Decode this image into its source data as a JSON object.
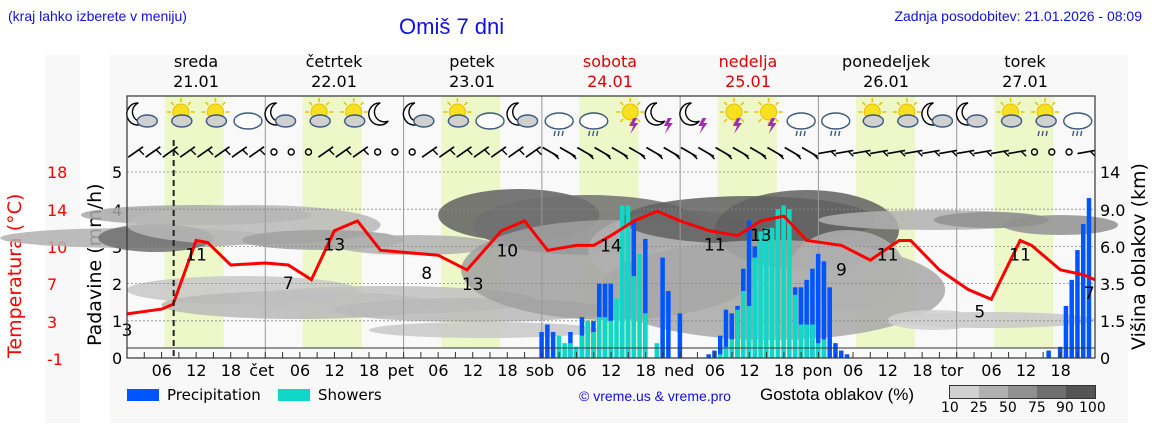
{
  "header": {
    "left_note": "(kraj lahko izberete v meniju)",
    "title": "Omiš 7 dni",
    "updated": "Zadnja posodobitev: 21.01.2026 - 08:09"
  },
  "days": [
    {
      "name": "sreda",
      "date": "21.01",
      "weekend": false
    },
    {
      "name": "četrtek",
      "date": "22.01",
      "weekend": false
    },
    {
      "name": "petek",
      "date": "23.01",
      "weekend": false
    },
    {
      "name": "sobota",
      "date": "24.01",
      "weekend": true
    },
    {
      "name": "nedelja",
      "date": "25.01",
      "weekend": true
    },
    {
      "name": "ponedeljek",
      "date": "26.01",
      "weekend": false
    },
    {
      "name": "torek",
      "date": "27.01",
      "weekend": false
    }
  ],
  "axes": {
    "temperature_label": "Temperatura (°C)",
    "temperature_ticks": [
      "18",
      "14",
      "10",
      "7",
      "3",
      "-1"
    ],
    "precip_label": "Padavine (mm/h)",
    "precip_ticks": [
      "5",
      "4",
      "3",
      "2",
      "1",
      "0"
    ],
    "cloud_height_label": "Višina oblakov (km)",
    "cloud_height_ticks": [
      "14",
      "9.0",
      "6.0",
      "3.5",
      "1.5",
      "0"
    ],
    "hour_labels": [
      "06",
      "12",
      "18",
      "čet",
      "06",
      "12",
      "18",
      "pet",
      "06",
      "12",
      "18",
      "sob",
      "06",
      "12",
      "18",
      "ned",
      "06",
      "12",
      "18",
      "pon",
      "06",
      "12",
      "18",
      "tor",
      "06",
      "12",
      "18"
    ]
  },
  "legend": {
    "precipitation": "Precipitation",
    "showers": "Showers",
    "precip_color": "#0055ff",
    "showers_color": "#10d8c8",
    "copyright": "© vreme.us & vreme.pro",
    "cloud_density_label": "Gostota oblakov (%)",
    "cloud_density_scale": [
      "10",
      "25",
      "50",
      "75",
      "90",
      "100"
    ],
    "cloud_density_colors": [
      "#d0d0d0",
      "#b0b0b0",
      "#909090",
      "#707070",
      "#545454"
    ]
  },
  "chart_data": {
    "type": "line",
    "title": "Omiš 7 dni",
    "x_range_hours": [
      0,
      168
    ],
    "x_start": "21.01 00:00",
    "series": [
      {
        "name": "Temperatura (°C)",
        "color": "#ff0000",
        "points_hours_temp": [
          [
            0,
            3.5
          ],
          [
            6,
            4.0
          ],
          [
            8,
            4.5
          ],
          [
            12,
            11
          ],
          [
            14,
            10.8
          ],
          [
            18,
            8.5
          ],
          [
            24,
            8.7
          ],
          [
            28,
            8.5
          ],
          [
            32,
            7
          ],
          [
            36,
            12
          ],
          [
            40,
            13
          ],
          [
            44,
            10
          ],
          [
            54,
            9.5
          ],
          [
            59,
            8
          ],
          [
            65,
            12
          ],
          [
            69,
            13
          ],
          [
            71,
            11.5
          ],
          [
            73,
            10
          ],
          [
            78,
            10.5
          ],
          [
            81,
            10.5
          ],
          [
            84,
            11.5
          ],
          [
            88,
            13
          ],
          [
            92,
            14
          ],
          [
            96,
            13
          ],
          [
            101,
            12
          ],
          [
            106,
            11.5
          ],
          [
            110,
            13
          ],
          [
            114,
            13.5
          ],
          [
            118,
            11
          ],
          [
            124,
            10.5
          ],
          [
            129,
            9
          ],
          [
            134,
            11
          ],
          [
            136,
            11
          ],
          [
            141,
            8
          ],
          [
            146,
            6
          ],
          [
            150,
            5
          ],
          [
            155,
            11
          ],
          [
            157,
            10.5
          ],
          [
            162,
            8
          ],
          [
            166,
            7.5
          ],
          [
            168,
            7
          ]
        ],
        "labels": [
          {
            "hour": 0,
            "value": "3"
          },
          {
            "hour": 12,
            "value": "11"
          },
          {
            "hour": 28,
            "value": "7"
          },
          {
            "hour": 36,
            "value": "13"
          },
          {
            "hour": 52,
            "value": "8"
          },
          {
            "hour": 60,
            "value": "13"
          },
          {
            "hour": 66,
            "value": "10"
          },
          {
            "hour": 84,
            "value": "14"
          },
          {
            "hour": 102,
            "value": "11"
          },
          {
            "hour": 110,
            "value": "13"
          },
          {
            "hour": 124,
            "value": "9"
          },
          {
            "hour": 132,
            "value": "11"
          },
          {
            "hour": 148,
            "value": "5"
          },
          {
            "hour": 155,
            "value": "11"
          },
          {
            "hour": 167,
            "value": "7"
          }
        ]
      },
      {
        "name": "Precipitation (mm/h)",
        "color": "#0055ff",
        "type": "bar",
        "points_hours_mm": [
          [
            72,
            0.7
          ],
          [
            73,
            0.9
          ],
          [
            74,
            0.7
          ],
          [
            77,
            0.7
          ],
          [
            78,
            0.3
          ],
          [
            79,
            1.1
          ],
          [
            80,
            1.0
          ],
          [
            81,
            1.0
          ],
          [
            82,
            2.0
          ],
          [
            83,
            2.0
          ],
          [
            84,
            2.0
          ],
          [
            86,
            2.6
          ],
          [
            87,
            2.6
          ],
          [
            88,
            3.7
          ],
          [
            90,
            3.2
          ],
          [
            93,
            2.7
          ],
          [
            94,
            1.8
          ],
          [
            96,
            1.2
          ],
          [
            101,
            0.1
          ],
          [
            102,
            0.2
          ],
          [
            103,
            0.6
          ],
          [
            104,
            1.3
          ],
          [
            105,
            1.2
          ],
          [
            106,
            1.4
          ],
          [
            107,
            2.4
          ],
          [
            108,
            3.7
          ],
          [
            109,
            3.0
          ],
          [
            116,
            1.9
          ],
          [
            117,
            1.9
          ],
          [
            118,
            2.1
          ],
          [
            119,
            2.4
          ],
          [
            120,
            2.8
          ],
          [
            121,
            2.6
          ],
          [
            122,
            1.9
          ],
          [
            123,
            0.4
          ],
          [
            124,
            0.2
          ],
          [
            125,
            0.1
          ],
          [
            160,
            0.2
          ],
          [
            162,
            0.3
          ],
          [
            163,
            1.4
          ],
          [
            164,
            2.1
          ],
          [
            165,
            2.9
          ],
          [
            166,
            3.6
          ],
          [
            167,
            4.3
          ]
        ]
      },
      {
        "name": "Showers (mm/h)",
        "color": "#10d8c8",
        "type": "bar",
        "points_hours_mm": [
          [
            75,
            0.6
          ],
          [
            76,
            0.4
          ],
          [
            77,
            0.4
          ],
          [
            78,
            0.3
          ],
          [
            79,
            0.6
          ],
          [
            80,
            1.0
          ],
          [
            81,
            0.7
          ],
          [
            82,
            1.1
          ],
          [
            83,
            1.1
          ],
          [
            84,
            1.0
          ],
          [
            85,
            1.6
          ],
          [
            86,
            4.1
          ],
          [
            87,
            4.1
          ],
          [
            88,
            2.2
          ],
          [
            89,
            2.8
          ],
          [
            90,
            1.2
          ],
          [
            92,
            0.4
          ],
          [
            103,
            0.1
          ],
          [
            104,
            0.3
          ],
          [
            105,
            0.5
          ],
          [
            106,
            1.3
          ],
          [
            107,
            1.8
          ],
          [
            108,
            1.4
          ],
          [
            109,
            2.7
          ],
          [
            110,
            3.4
          ],
          [
            111,
            3.5
          ],
          [
            112,
            3.5
          ],
          [
            113,
            4.0
          ],
          [
            114,
            4.1
          ],
          [
            115,
            4.0
          ],
          [
            116,
            1.7
          ],
          [
            117,
            0.9
          ],
          [
            118,
            0.9
          ],
          [
            119,
            0.9
          ],
          [
            120,
            0.4
          ],
          [
            121,
            0.5
          ]
        ]
      }
    ],
    "xlabel": "",
    "ylabel": "Padavine (mm/h)",
    "ylim": [
      0,
      5
    ],
    "y2label": "Temperatura (°C)",
    "y2lim": [
      -1,
      18
    ],
    "y3label": "Višina oblakov (km)",
    "y3_ticks": [
      0,
      1.5,
      3.5,
      6.0,
      9.0,
      14
    ],
    "grid": true,
    "legend_position": "bottom",
    "current_time_marker_hour": 8.1,
    "daylight_bands_hours": [
      [
        6,
        18
      ],
      [
        30,
        42
      ],
      [
        54,
        66
      ],
      [
        78,
        90
      ],
      [
        102,
        114
      ],
      [
        126,
        138
      ],
      [
        150,
        162
      ]
    ],
    "weather_icons": [
      "moon-cloud",
      "sun-cloud",
      "sun-cloud",
      "cloud",
      "moon-cloud",
      "sun-cloud",
      "sun-cloud",
      "moon",
      "moon-cloud",
      "sun-cloud",
      "cloud",
      "moon-cloud",
      "cloud-rain",
      "cloud-rain",
      "sun-thunder",
      "moon-thunder",
      "moon-thunder",
      "sun-thunder",
      "sun-thunder",
      "cloud-rain",
      "cloud-rain",
      "sun-cloud",
      "sun-cloud",
      "moon-cloud",
      "moon-cloud",
      "sun-cloud",
      "sun-cloud-rain",
      "cloud-rain"
    ]
  }
}
